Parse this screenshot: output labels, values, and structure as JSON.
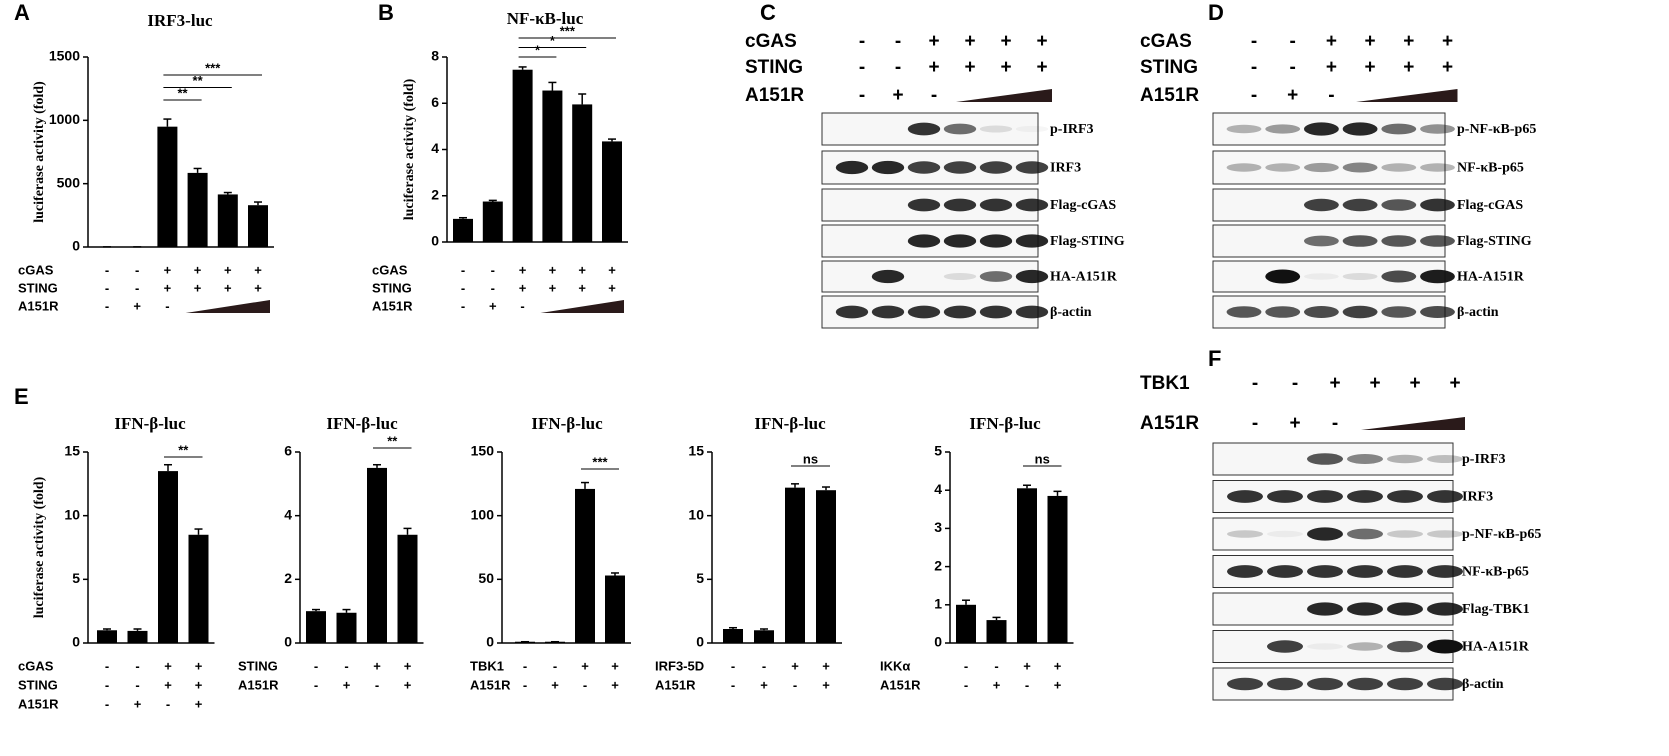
{
  "panel_labels": [
    "A",
    "B",
    "C",
    "D",
    "E",
    "F"
  ],
  "chart_data": [
    {
      "type": "bar",
      "title": "IRF3-luc",
      "y_label": "luciferase activity (fold)",
      "values": [
        1,
        1,
        950,
        585,
        415,
        330
      ],
      "errors": [
        0,
        0,
        60,
        35,
        15,
        25
      ],
      "color": "#000000",
      "ylim": [
        0,
        1500
      ],
      "yticks": [
        0,
        500,
        1000,
        1500
      ],
      "significance": [
        "**",
        "**",
        "***"
      ],
      "conditions": [
        {
          "label": "cGAS",
          "signs": [
            "-",
            "-",
            "+",
            "+",
            "+",
            "+"
          ]
        },
        {
          "label": "STING",
          "signs": [
            "-",
            "-",
            "+",
            "+",
            "+",
            "+"
          ]
        },
        {
          "label": "A151R",
          "signs": [
            "-",
            "+",
            "-"
          ]
        }
      ]
    },
    {
      "type": "bar",
      "title": "NF-κB-luc",
      "y_label": "luciferase activity (fold)",
      "values": [
        1.0,
        1.75,
        7.45,
        6.55,
        5.95,
        4.35
      ],
      "errors": [
        0.05,
        0.05,
        0.12,
        0.35,
        0.45,
        0.1
      ],
      "color": "#000000",
      "ylim": [
        0,
        8
      ],
      "yticks": [
        0,
        2,
        4,
        6,
        8
      ],
      "significance": [
        "*",
        "*",
        "***"
      ],
      "conditions": [
        {
          "label": "cGAS",
          "signs": [
            "-",
            "-",
            "+",
            "+",
            "+",
            "+"
          ]
        },
        {
          "label": "STING",
          "signs": [
            "-",
            "-",
            "+",
            "+",
            "+",
            "+"
          ]
        },
        {
          "label": "A151R",
          "signs": [
            "-",
            "+",
            "-"
          ]
        }
      ]
    },
    {
      "type": "bar",
      "title": "IFN-β-luc",
      "y_label": "luciferase activity (fold)",
      "values": [
        1.0,
        0.95,
        13.5,
        8.5
      ],
      "errors": [
        0.1,
        0.15,
        0.5,
        0.45
      ],
      "color": "#000000",
      "ylim": [
        0,
        15
      ],
      "yticks": [
        0,
        5,
        10,
        15
      ],
      "significance": [
        "**"
      ],
      "conditions": [
        {
          "label": "cGAS",
          "signs": [
            "-",
            "-",
            "+",
            "+"
          ]
        },
        {
          "label": "STING",
          "signs": [
            "-",
            "-",
            "+",
            "+"
          ]
        },
        {
          "label": "A151R",
          "signs": [
            "-",
            "+",
            "-",
            "+"
          ]
        }
      ]
    },
    {
      "type": "bar",
      "title": "IFN-β-luc",
      "values": [
        1.0,
        0.95,
        5.5,
        3.4
      ],
      "errors": [
        0.05,
        0.1,
        0.1,
        0.2
      ],
      "color": "#000000",
      "ylim": [
        0,
        6
      ],
      "yticks": [
        0,
        2,
        4,
        6
      ],
      "significance": [
        "**"
      ],
      "conditions": [
        {
          "label": "STING",
          "signs": [
            "-",
            "-",
            "+",
            "+"
          ]
        },
        {
          "label": "A151R",
          "signs": [
            "-",
            "+",
            "-",
            "+"
          ]
        }
      ]
    },
    {
      "type": "bar",
      "title": "IFN-β-luc",
      "values": [
        1,
        1,
        121,
        53
      ],
      "errors": [
        0,
        0,
        5,
        2
      ],
      "color": "#000000",
      "ylim": [
        0,
        150
      ],
      "yticks": [
        0,
        50,
        100,
        150
      ],
      "significance": [
        "***"
      ],
      "conditions": [
        {
          "label": "TBK1",
          "signs": [
            "-",
            "-",
            "+",
            "+"
          ]
        },
        {
          "label": "A151R",
          "signs": [
            "-",
            "+",
            "-",
            "+"
          ]
        }
      ]
    },
    {
      "type": "bar",
      "title": "IFN-β-luc",
      "values": [
        1.1,
        1.0,
        12.2,
        12.0
      ],
      "errors": [
        0.1,
        0.1,
        0.3,
        0.25
      ],
      "color": "#000000",
      "ylim": [
        0,
        15
      ],
      "yticks": [
        0,
        5,
        10,
        15
      ],
      "significance": [
        "ns"
      ],
      "conditions": [
        {
          "label": "IRF3-5D",
          "signs": [
            "-",
            "-",
            "+",
            "+"
          ]
        },
        {
          "label": "A151R",
          "signs": [
            "-",
            "+",
            "-",
            "+"
          ]
        }
      ]
    },
    {
      "type": "bar",
      "title": "IFN-β-luc",
      "values": [
        1.0,
        0.6,
        4.05,
        3.85
      ],
      "errors": [
        0.12,
        0.07,
        0.08,
        0.12
      ],
      "color": "#000000",
      "ylim": [
        0,
        5
      ],
      "yticks": [
        0,
        1,
        2,
        3,
        4,
        5
      ],
      "significance": [
        "ns"
      ],
      "conditions": [
        {
          "label": "IKKα",
          "signs": [
            "-",
            "-",
            "+",
            "+"
          ]
        },
        {
          "label": "A151R",
          "signs": [
            "-",
            "+",
            "-",
            "+"
          ]
        }
      ]
    }
  ],
  "blots": [
    {
      "conditions": [
        {
          "label": "cGAS",
          "signs": [
            "-",
            "-",
            "+",
            "+",
            "+",
            "+"
          ]
        },
        {
          "label": "STING",
          "signs": [
            "-",
            "-",
            "+",
            "+",
            "+",
            "+"
          ]
        },
        {
          "label": "A151R",
          "signs": [
            "-",
            "+",
            "-"
          ]
        }
      ],
      "bands": [
        "p-IRF3",
        "IRF3",
        "Flag-cGAS",
        "Flag-STING",
        "HA-A151R",
        "β-actin"
      ]
    },
    {
      "conditions": [
        {
          "label": "cGAS",
          "signs": [
            "-",
            "-",
            "+",
            "+",
            "+",
            "+"
          ]
        },
        {
          "label": "STING",
          "signs": [
            "-",
            "-",
            "+",
            "+",
            "+",
            "+"
          ]
        },
        {
          "label": "A151R",
          "signs": [
            "-",
            "+",
            "-"
          ]
        }
      ],
      "bands": [
        "p-NF-κB-p65",
        "NF-κB-p65",
        "Flag-cGAS",
        "Flag-STING",
        "HA-A151R",
        "β-actin"
      ]
    },
    {
      "conditions": [
        {
          "label": "TBK1",
          "signs": [
            "-",
            "-",
            "+",
            "+",
            "+",
            "+"
          ]
        },
        {
          "label": "A151R",
          "signs": [
            "-",
            "+",
            "-"
          ]
        }
      ],
      "bands": [
        "p-IRF3",
        "IRF3",
        "p-NF-κB-p65",
        "NF-κB-p65",
        "Flag-TBK1",
        "HA-A151R",
        "β-actin"
      ]
    }
  ]
}
